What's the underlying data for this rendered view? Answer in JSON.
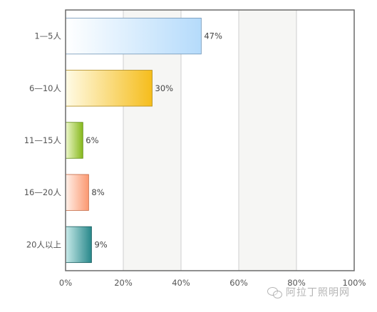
{
  "chart_data": {
    "type": "bar",
    "orientation": "horizontal",
    "categories": [
      "1—5人",
      "6—10人",
      "11—15人",
      "16—20人",
      "20人以上"
    ],
    "values": [
      47,
      30,
      6,
      8,
      9
    ],
    "data_labels": [
      "47%",
      "30%",
      "6%",
      "8%",
      "9%"
    ],
    "xlim": [
      0,
      100
    ],
    "x_ticks": [
      0,
      20,
      40,
      60,
      80,
      100
    ],
    "x_tick_labels": [
      "0%",
      "20%",
      "40%",
      "60%",
      "80%",
      "100%"
    ],
    "grid": true,
    "title": "",
    "xlabel": "",
    "ylabel": "",
    "bar_colors": [
      {
        "light": "#ffffff",
        "dark": "#b5dbfb",
        "edge": "#6f94b5"
      },
      {
        "light": "#fffbe6",
        "dark": "#f5bd1c",
        "edge": "#b08a1a"
      },
      {
        "light": "#eef8cc",
        "dark": "#86b81c",
        "edge": "#5e8a12"
      },
      {
        "light": "#fff1ea",
        "dark": "#fb9870",
        "edge": "#c56a45"
      },
      {
        "light": "#c9ebea",
        "dark": "#27878a",
        "edge": "#1b5d5f"
      }
    ]
  },
  "watermark": {
    "text": "阿拉丁照明网"
  }
}
